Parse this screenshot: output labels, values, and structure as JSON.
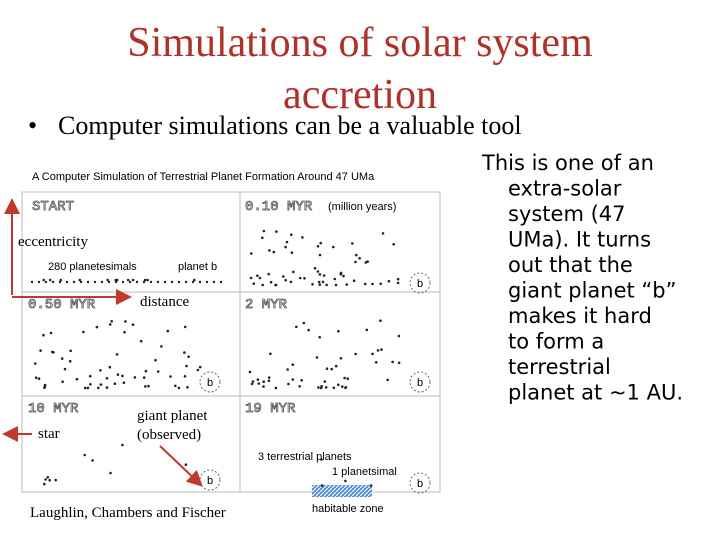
{
  "slide": {
    "title_lines": [
      "Simulations of solar system",
      "accretion"
    ],
    "bullet": "Computer simulations can be a valuable tool",
    "figure": {
      "title": "A Computer Simulation of Terrestrial Planet Formation Around 47 UMa",
      "panel_labels": [
        "START",
        "0.10 MYR",
        "0.50 MYR",
        "2 MYR",
        "10 MYR",
        "19 MYR"
      ],
      "time_unit": "(million years)",
      "start_count": "280 planetesimals",
      "planet_label": "planet b",
      "planet_marker": "b",
      "final_planets": "3 terrestrial planets",
      "final_planetesimal": "1 planetsimal",
      "zone_label": "habitable zone"
    },
    "annotations": {
      "eccentricity": "eccentricity",
      "distance": "distance",
      "star": "star",
      "giant_planet": [
        "giant planet",
        "(observed)"
      ]
    },
    "credit": "Laughlin, Chambers and Fischer",
    "side_text": [
      "This is one of an",
      "extra-solar",
      "system (47",
      "UMa). It turns",
      "out that the",
      "giant planet “b”",
      "makes it hard",
      "to form a",
      "terrestrial",
      "planet at ~1 AU."
    ]
  }
}
